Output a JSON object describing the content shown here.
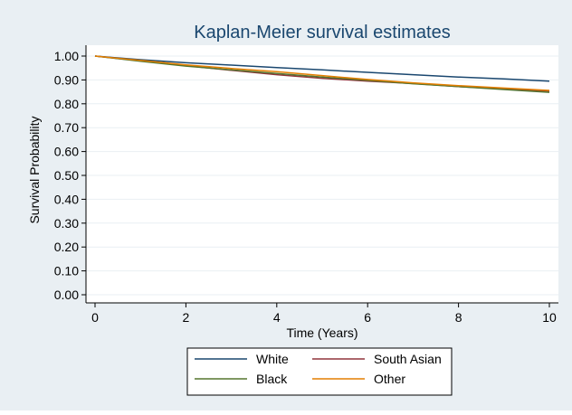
{
  "chart_data": {
    "type": "line",
    "title": "Kaplan-Meier survival estimates",
    "xlabel": "Time (Years)",
    "ylabel": "Survival Probability",
    "xlim": [
      0,
      10
    ],
    "ylim": [
      0,
      1
    ],
    "xticks": [
      0,
      2,
      4,
      6,
      8,
      10
    ],
    "yticks": [
      0.0,
      0.1,
      0.2,
      0.3,
      0.4,
      0.5,
      0.6,
      0.7,
      0.8,
      0.9,
      1.0
    ],
    "ytick_labels": [
      "0.00",
      "0.10",
      "0.20",
      "0.30",
      "0.40",
      "0.50",
      "0.60",
      "0.70",
      "0.80",
      "0.90",
      "1.00"
    ],
    "grid": "horizontal",
    "legend_position": "bottom",
    "colors": {
      "background": "#e9eff3",
      "plot_background": "#ffffff",
      "title": "#1a476f",
      "grid": "#e9eff3"
    },
    "series": [
      {
        "name": "White",
        "color": "#1a476f",
        "x": [
          0,
          1,
          2,
          3,
          4,
          5,
          6,
          7,
          8,
          9,
          10
        ],
        "y": [
          1.0,
          0.985,
          0.972,
          0.962,
          0.952,
          0.942,
          0.932,
          0.922,
          0.912,
          0.904,
          0.895
        ]
      },
      {
        "name": "South Asian",
        "color": "#90353b",
        "x": [
          0,
          1,
          2,
          3,
          4,
          5,
          6,
          7,
          8,
          9,
          10
        ],
        "y": [
          1.0,
          0.98,
          0.96,
          0.94,
          0.922,
          0.907,
          0.895,
          0.885,
          0.872,
          0.862,
          0.853
        ]
      },
      {
        "name": "Black",
        "color": "#55752f",
        "x": [
          0,
          1,
          2,
          3,
          4,
          5,
          6,
          7,
          8,
          9,
          10
        ],
        "y": [
          1.0,
          0.978,
          0.958,
          0.942,
          0.927,
          0.912,
          0.898,
          0.884,
          0.872,
          0.86,
          0.848
        ]
      },
      {
        "name": "Other",
        "color": "#e37e00",
        "x": [
          0,
          1,
          2,
          3,
          4,
          5,
          6,
          7,
          8,
          9,
          10
        ],
        "y": [
          1.0,
          0.982,
          0.963,
          0.948,
          0.935,
          0.918,
          0.902,
          0.888,
          0.876,
          0.866,
          0.856
        ]
      }
    ],
    "legend_layout": [
      [
        "White",
        "South Asian"
      ],
      [
        "Black",
        "Other"
      ]
    ]
  }
}
